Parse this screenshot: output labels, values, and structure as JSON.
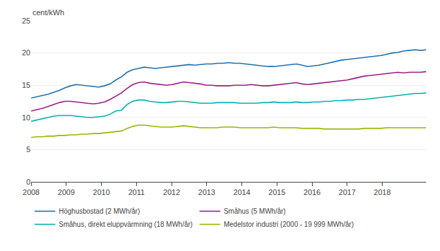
{
  "chart_data": {
    "type": "line",
    "ylabel": "cent/kWh",
    "x": [
      2008,
      2008.160714,
      2008.321429,
      2008.482143,
      2008.642857,
      2008.803571,
      2008.964286,
      2009.125,
      2009.285714,
      2009.446429,
      2009.607143,
      2009.767857,
      2009.928571,
      2010.089286,
      2010.25,
      2010.410714,
      2010.571429,
      2010.732143,
      2010.892857,
      2011.053571,
      2011.214286,
      2011.375,
      2011.535714,
      2011.696429,
      2011.857143,
      2012.017857,
      2012.178571,
      2012.339286,
      2012.5,
      2012.660714,
      2012.821429,
      2012.982143,
      2013.142857,
      2013.303571,
      2013.464286,
      2013.625,
      2013.785714,
      2013.946429,
      2014.107143,
      2014.267857,
      2014.428571,
      2014.589286,
      2014.75,
      2014.910714,
      2015.071429,
      2015.232143,
      2015.392857,
      2015.553571,
      2015.714286,
      2015.875,
      2016.035714,
      2016.196429,
      2016.357143,
      2016.517857,
      2016.678571,
      2016.839286,
      2017,
      2017.160714,
      2017.321429,
      2017.482143,
      2017.642857,
      2017.803571,
      2017.964286,
      2018.125,
      2018.285714,
      2018.446429,
      2018.607143,
      2018.767857,
      2018.928571,
      2019.089286,
      2019.25
    ],
    "xlim": [
      2008.0,
      2019.25
    ],
    "xticks": [
      2008,
      2009,
      2010,
      2011,
      2012,
      2013,
      2014,
      2015,
      2016,
      2017,
      2018
    ],
    "ylim": [
      0,
      25
    ],
    "yticks": [
      0,
      5,
      10,
      15,
      20,
      25
    ],
    "grid": "y",
    "legend": "bottom",
    "series": [
      {
        "name": "Höghusbostad (2 MWh/år)",
        "color": "#1a6faf",
        "values": [
          13.0,
          13.2,
          13.4,
          13.6,
          13.9,
          14.2,
          14.6,
          14.9,
          15.1,
          15.0,
          14.9,
          14.8,
          14.7,
          14.9,
          15.2,
          15.8,
          16.3,
          17.0,
          17.4,
          17.6,
          17.8,
          17.7,
          17.6,
          17.7,
          17.8,
          17.9,
          18.0,
          18.1,
          18.2,
          18.1,
          18.2,
          18.3,
          18.3,
          18.4,
          18.4,
          18.5,
          18.4,
          18.4,
          18.3,
          18.2,
          18.1,
          18.0,
          17.9,
          17.9,
          18.0,
          18.1,
          18.2,
          18.3,
          18.1,
          17.9,
          18.0,
          18.1,
          18.3,
          18.5,
          18.7,
          18.9,
          19.0,
          19.1,
          19.2,
          19.3,
          19.4,
          19.5,
          19.6,
          19.8,
          20.0,
          20.1,
          20.3,
          20.4,
          20.5,
          20.4,
          20.5
        ]
      },
      {
        "name": "Småhus (5 MWh/år)",
        "color": "#9b1a82",
        "values": [
          11.0,
          11.2,
          11.4,
          11.7,
          12.0,
          12.3,
          12.5,
          12.5,
          12.4,
          12.3,
          12.2,
          12.1,
          12.2,
          12.4,
          12.8,
          13.3,
          13.8,
          14.5,
          15.1,
          15.4,
          15.5,
          15.3,
          15.2,
          15.1,
          15.0,
          15.1,
          15.3,
          15.5,
          15.4,
          15.3,
          15.2,
          15.0,
          15.0,
          14.9,
          14.9,
          14.9,
          15.0,
          15.0,
          15.0,
          15.1,
          15.0,
          14.9,
          14.9,
          15.0,
          15.1,
          15.2,
          15.3,
          15.4,
          15.2,
          15.1,
          15.2,
          15.3,
          15.4,
          15.5,
          15.6,
          15.7,
          15.8,
          16.0,
          16.2,
          16.4,
          16.5,
          16.6,
          16.7,
          16.8,
          16.9,
          17.0,
          16.9,
          17.0,
          17.0,
          17.0,
          17.1
        ]
      },
      {
        "name": "Småhus, direkt eluppvärmning (18 MWh/år)",
        "color": "#00b0b0",
        "values": [
          9.4,
          9.6,
          9.8,
          10.0,
          10.2,
          10.3,
          10.3,
          10.3,
          10.2,
          10.1,
          10.0,
          10.0,
          10.1,
          10.2,
          10.5,
          11.0,
          11.1,
          12.0,
          12.5,
          12.7,
          12.7,
          12.5,
          12.4,
          12.3,
          12.3,
          12.4,
          12.5,
          12.5,
          12.4,
          12.3,
          12.2,
          12.2,
          12.2,
          12.3,
          12.3,
          12.3,
          12.3,
          12.2,
          12.2,
          12.2,
          12.2,
          12.3,
          12.3,
          12.4,
          12.3,
          12.3,
          12.3,
          12.4,
          12.3,
          12.3,
          12.4,
          12.4,
          12.5,
          12.5,
          12.6,
          12.6,
          12.7,
          12.7,
          12.8,
          12.8,
          12.9,
          13.0,
          13.1,
          13.2,
          13.3,
          13.4,
          13.5,
          13.6,
          13.7,
          13.7,
          13.8
        ]
      },
      {
        "name": "Medelstor industri (2000 - 19 999 MWh/år)",
        "color": "#9ab400",
        "values": [
          6.9,
          7.0,
          7.0,
          7.1,
          7.1,
          7.2,
          7.2,
          7.3,
          7.3,
          7.4,
          7.4,
          7.5,
          7.5,
          7.6,
          7.7,
          7.8,
          7.9,
          8.3,
          8.6,
          8.8,
          8.8,
          8.7,
          8.6,
          8.5,
          8.5,
          8.5,
          8.6,
          8.7,
          8.6,
          8.5,
          8.4,
          8.4,
          8.4,
          8.4,
          8.5,
          8.5,
          8.5,
          8.4,
          8.4,
          8.4,
          8.4,
          8.4,
          8.4,
          8.5,
          8.4,
          8.4,
          8.4,
          8.4,
          8.3,
          8.3,
          8.3,
          8.3,
          8.2,
          8.2,
          8.2,
          8.2,
          8.2,
          8.2,
          8.2,
          8.3,
          8.3,
          8.3,
          8.3,
          8.4,
          8.4,
          8.4,
          8.4,
          8.4,
          8.4,
          8.4,
          8.4
        ]
      }
    ]
  }
}
